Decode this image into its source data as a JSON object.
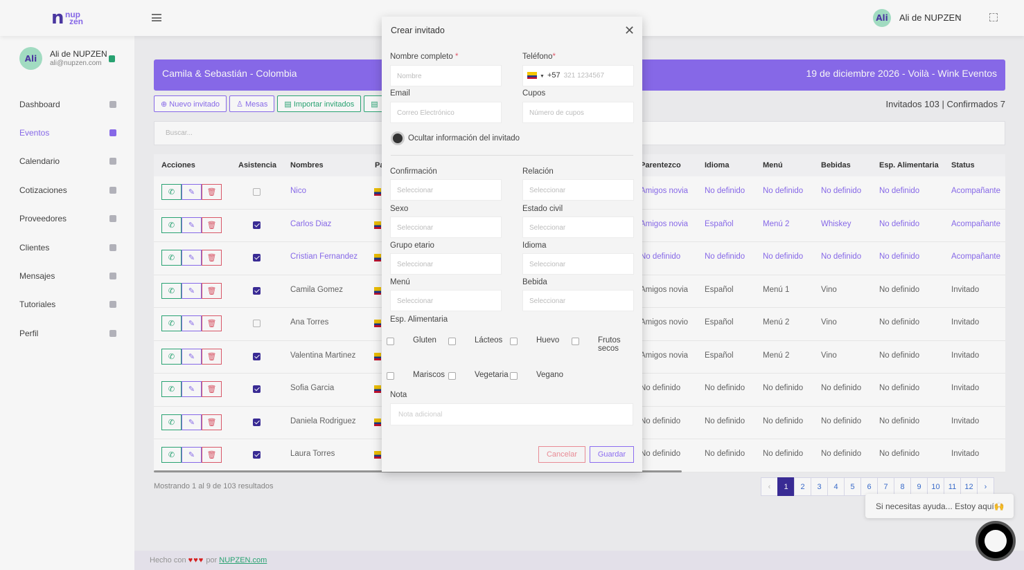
{
  "topbar": {
    "user_name": "Ali de NUPZEN",
    "logo_top": "nup",
    "logo_bottom": "zen",
    "avatar_text": "Ali"
  },
  "sidebar": {
    "user_name": "Ali de NUPZEN",
    "user_email": "ali@nupzen.com",
    "avatar_text": "Ali",
    "items": [
      {
        "label": "Dashboard",
        "icon": "dashboard-icon"
      },
      {
        "label": "Eventos",
        "icon": "cake-icon",
        "active": true
      },
      {
        "label": "Calendario",
        "icon": "calendar-icon"
      },
      {
        "label": "Cotizaciones",
        "icon": "chart-icon"
      },
      {
        "label": "Proveedores",
        "icon": "truck-icon"
      },
      {
        "label": "Clientes",
        "icon": "users-icon"
      },
      {
        "label": "Mensajes",
        "icon": "chat-icon"
      },
      {
        "label": "Tutoriales",
        "icon": "video-icon"
      },
      {
        "label": "Perfil",
        "icon": "user-icon"
      }
    ]
  },
  "banner": {
    "left": "Camila & Sebastián - Colombia",
    "right": "19 de diciembre 2026 - Voilà - Wink Eventos"
  },
  "toolbar": {
    "new_guest": "Nuevo invitado",
    "tables": "Mesas",
    "import": "Importar invitados"
  },
  "counts": "Invitados 103 | Confirmados 7",
  "search": {
    "placeholder": "Buscar..."
  },
  "table": {
    "headers": {
      "acciones": "Acciones",
      "asistencia": "Asistencia",
      "nombres": "Nombres",
      "pa": "Pa",
      "parentezco": "Parentezco",
      "idioma": "Idioma",
      "menu": "Menú",
      "bebidas": "Bebidas",
      "esp": "Esp. Alimentaria",
      "status": "Status"
    },
    "rows": [
      {
        "asistencia": false,
        "name": "Nico",
        "parentezco": "Amigos novia",
        "idioma": "No definido",
        "menu": "No definido",
        "bebidas": "No definido",
        "esp": "No definido",
        "status": "Acompañante",
        "link": true
      },
      {
        "asistencia": true,
        "name": "Carlos Diaz",
        "parentezco": "Amigos novia",
        "idioma": "Español",
        "menu": "Menú 2",
        "bebidas": "Whiskey",
        "esp": "No definido",
        "status": "Acompañante",
        "link": true
      },
      {
        "asistencia": true,
        "name": "Cristian Fernandez",
        "parentezco": "No definido",
        "idioma": "No definido",
        "menu": "No definido",
        "bebidas": "No definido",
        "esp": "No definido",
        "status": "Acompañante",
        "link": true
      },
      {
        "asistencia": true,
        "name": "Camila Gomez",
        "parentezco": "Amigos novia",
        "idioma": "Español",
        "menu": "Menú 1",
        "bebidas": "Vino",
        "esp": "No definido",
        "status": "Invitado",
        "link": false
      },
      {
        "asistencia": false,
        "name": "Ana Torres",
        "parentezco": "Amigos novio",
        "idioma": "Español",
        "menu": "Menú 2",
        "bebidas": "Vino",
        "esp": "No definido",
        "status": "Invitado",
        "link": false
      },
      {
        "asistencia": true,
        "name": "Valentina Martinez",
        "parentezco": "Amigos novia",
        "idioma": "Español",
        "menu": "Menú 2",
        "bebidas": "Vino",
        "esp": "No definido",
        "status": "Invitado",
        "link": false
      },
      {
        "asistencia": true,
        "name": "Sofia Garcia",
        "parentezco": "No definido",
        "idioma": "No definido",
        "menu": "No definido",
        "bebidas": "No definido",
        "esp": "No definido",
        "status": "Invitado",
        "link": false
      },
      {
        "asistencia": true,
        "name": "Daniela Rodriguez",
        "parentezco": "No definido",
        "idioma": "No definido",
        "menu": "No definido",
        "bebidas": "No definido",
        "esp": "No definido",
        "status": "Invitado",
        "link": false
      },
      {
        "asistencia": true,
        "name": "Laura Torres",
        "parentezco": "No definido",
        "idioma": "No definido",
        "menu": "No definido",
        "bebidas": "No definido",
        "esp": "No definido",
        "status": "Invitado",
        "link": false
      }
    ]
  },
  "showing": "Mostrando 1 al 9 de 103 resultados",
  "pagination": {
    "prev": "‹",
    "next": "›",
    "pages": [
      "1",
      "2",
      "3",
      "4",
      "5",
      "6",
      "7",
      "8",
      "9",
      "10",
      "11",
      "12"
    ],
    "current": "1"
  },
  "help": "Si necesitas ayuda... Estoy aquí🙌",
  "footer": {
    "made_with": "Hecho con",
    "hearts": "♥♥♥",
    "by": "por",
    "link": "NUPZEN.com"
  },
  "modal": {
    "title": "Crear invitado",
    "close": "✕",
    "nombre_label": "Nombre completo",
    "nombre_placeholder": "Nombre",
    "telefono_label": "Teléfono",
    "telefono_code": "+57",
    "telefono_placeholder": "321 1234567",
    "required_mark": "*",
    "email_label": "Email",
    "email_placeholder": "Correo Electrónico",
    "cupos_label": "Cupos",
    "cupos_placeholder": "Número de cupos",
    "hide_label": "Ocultar información del invitado",
    "confirmacion_label": "Confirmación",
    "relacion_label": "Relación",
    "sexo_label": "Sexo",
    "estado_label": "Estado civil",
    "grupo_label": "Grupo etario",
    "idioma_label": "Idioma",
    "menu_label": "Menú",
    "bebida_label": "Bebida",
    "select_placeholder": "Seleccionar",
    "esp_label": "Esp. Alimentaria",
    "options": {
      "gluten": "Gluten",
      "lacteos": "Lácteos",
      "huevo": "Huevo",
      "frutos1": "Frutos",
      "frutos2": "secos",
      "mariscos": "Mariscos",
      "vegetaria": "Vegetaria",
      "vegano": "Vegano"
    },
    "nota_label": "Nota",
    "nota_placeholder": "Nota adicional",
    "cancel": "Cancelar",
    "save": "Guardar"
  },
  "colors": {
    "accent": "#8b6cf0",
    "dark_accent": "#3c2d9a",
    "green": "#2aa876",
    "red": "#e05a6b"
  }
}
